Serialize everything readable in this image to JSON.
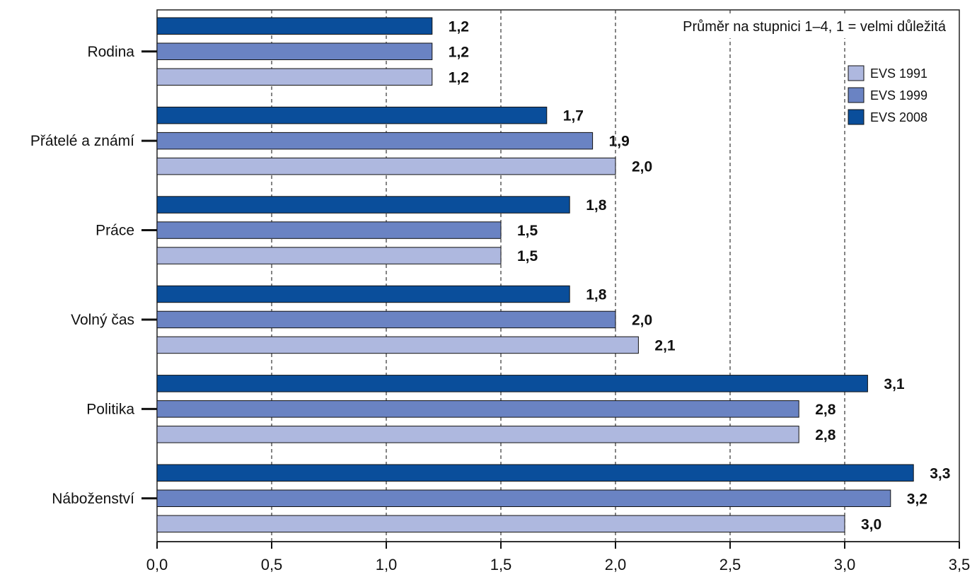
{
  "chart_data": {
    "type": "bar",
    "orientation": "horizontal",
    "note": "Průměr na stupnici 1–4, 1 = velmi důležitá",
    "categories": [
      "Rodina",
      "Přátelé a známí",
      "Práce",
      "Volný čas",
      "Politika",
      "Náboženství"
    ],
    "series": [
      {
        "name": "EVS 2008",
        "color": "#0a4e9b",
        "values": [
          1.2,
          1.7,
          1.8,
          1.8,
          3.1,
          3.3
        ],
        "labels": [
          "1,2",
          "1,7",
          "1,8",
          "1,8",
          "3,1",
          "3,3"
        ]
      },
      {
        "name": "EVS 1999",
        "color": "#6a83c3",
        "values": [
          1.2,
          1.9,
          1.5,
          2.0,
          2.8,
          3.2
        ],
        "labels": [
          "1,2",
          "1,9",
          "1,5",
          "2,0",
          "2,8",
          "3,2"
        ]
      },
      {
        "name": "EVS 1991",
        "color": "#aeb8df",
        "values": [
          1.2,
          2.0,
          1.5,
          2.1,
          2.8,
          3.0
        ],
        "labels": [
          "1,2",
          "2,0",
          "1,5",
          "2,1",
          "2,8",
          "3,0"
        ]
      }
    ],
    "legend": {
      "placement": "top-right",
      "order": [
        "EVS 1991",
        "EVS 1999",
        "EVS 2008"
      ]
    },
    "xlim": [
      0,
      3.5
    ],
    "xticks": [
      0,
      0.5,
      1.0,
      1.5,
      2.0,
      2.5,
      3.0,
      3.5
    ],
    "xtick_labels": [
      "0,0",
      "0,5",
      "1,0",
      "1,5",
      "2,0",
      "2,5",
      "3,0",
      "3,5"
    ],
    "xlabel": "",
    "ylabel": "",
    "grid": "vertical dashed"
  }
}
